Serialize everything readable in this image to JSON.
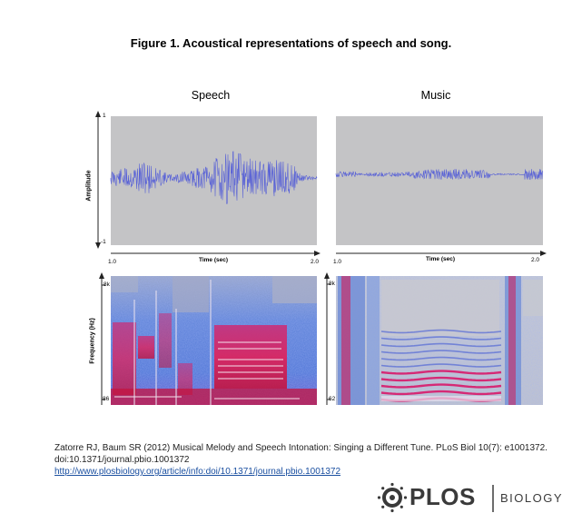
{
  "figure": {
    "title": "Figure 1. Acoustical representations of speech and song."
  },
  "panels": {
    "speech": {
      "title": "Speech",
      "y_axis_label": "Amplitude",
      "y_top_tick": "1",
      "y_bottom_tick": "-1",
      "x_axis_label": "Time (sec)",
      "x_start_tick": "1.0",
      "x_end_tick": "2.0",
      "spec_y_label": "Frequency (Hz)",
      "spec_top_tick": "8k",
      "spec_bottom_tick": "86"
    },
    "music": {
      "title": "Music",
      "x_axis_label": "Time (sec)",
      "x_start_tick": "1.0",
      "x_end_tick": "2.0",
      "spec_top_tick": "8k",
      "spec_bottom_tick": "62"
    }
  },
  "colors": {
    "panel_bg": "#c4c4c6",
    "waveform": "#5a63d6",
    "spec_low": "#6a86d8",
    "spec_mid": "#d61e6a",
    "spec_high": "#e8e0ee"
  },
  "citation": {
    "line1": "Zatorre RJ, Baum SR (2012) Musical Melody and Speech Intonation: Singing a Different Tune. PLoS Biol 10(7): e1001372.",
    "line2": "doi:10.1371/journal.pbio.1001372",
    "url": "http://www.plosbiology.org/article/info:doi/10.1371/journal.pbio.1001372"
  },
  "logo": {
    "word": "PLOS",
    "sub": "BIOLOGY"
  }
}
